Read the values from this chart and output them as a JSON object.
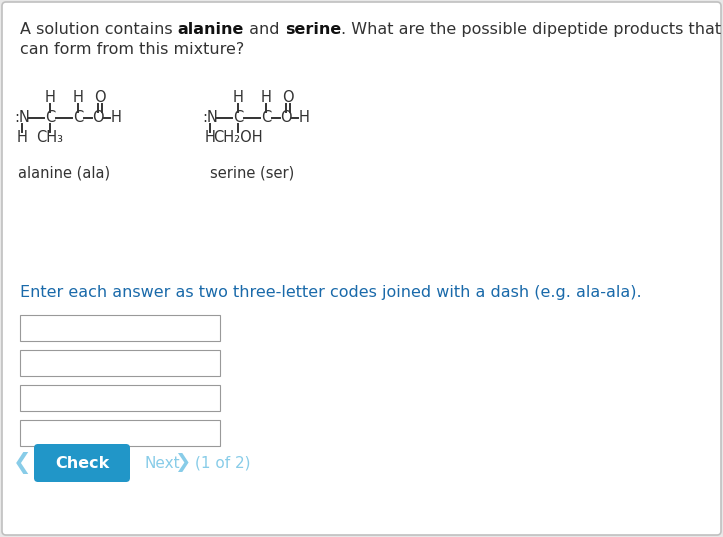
{
  "bg_color": "#e8e8e8",
  "panel_color": "#ffffff",
  "panel_border": "#c0c0c0",
  "question_color": "#333333",
  "bold_color": "#111111",
  "instruction_color": "#1a6aaa",
  "check_button_color": "#2196c8",
  "check_button_text": "Check",
  "next_text": "Next",
  "page_text": "(1 of 2)",
  "nav_color": "#88cce8",
  "input_box_border": "#999999",
  "struct_color": "#333333",
  "label_ala": "alanine (ala)",
  "label_ser": "serine (ser)",
  "title_part1": "A solution contains ",
  "title_bold1": "alanine",
  "title_part2": " and ",
  "title_bold2": "serine",
  "title_part3": ". What are the possible dipeptide products that",
  "title_line2": "can form from this mixture?",
  "instruction_text": "Enter each answer as two three-letter codes joined with a dash (e.g. ala-ala)."
}
